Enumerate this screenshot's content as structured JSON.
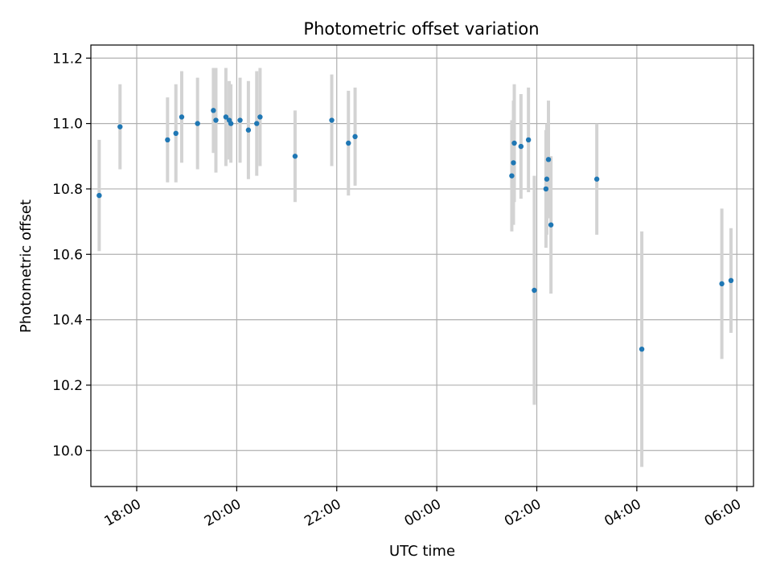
{
  "chart_data": {
    "type": "scatter",
    "title": "Photometric offset variation",
    "xlabel": "UTC time",
    "ylabel": "Photometric offset",
    "grid": true,
    "xaxis": {
      "kind": "time",
      "range": [
        "17:05",
        "06:20"
      ],
      "ticks": [
        "18:00",
        "20:00",
        "22:00",
        "00:00",
        "02:00",
        "04:00",
        "06:00"
      ]
    },
    "yaxis": {
      "range": [
        9.89,
        11.24
      ],
      "ticks": [
        "10.0",
        "10.2",
        "10.4",
        "10.6",
        "10.8",
        "11.0",
        "11.2"
      ]
    },
    "colors": {
      "marker": "#1f77b4",
      "errorbar": "#d3d3d3",
      "grid": "#b0b0b0"
    },
    "points": [
      {
        "t": "17:15",
        "y": 10.78,
        "err": 0.17
      },
      {
        "t": "17:40",
        "y": 10.99,
        "err": 0.13
      },
      {
        "t": "18:37",
        "y": 10.95,
        "err": 0.13
      },
      {
        "t": "18:47",
        "y": 10.97,
        "err": 0.15
      },
      {
        "t": "18:54",
        "y": 11.02,
        "err": 0.14
      },
      {
        "t": "19:13",
        "y": 11.0,
        "err": 0.14
      },
      {
        "t": "19:32",
        "y": 11.04,
        "err": 0.13
      },
      {
        "t": "19:35",
        "y": 11.01,
        "err": 0.16
      },
      {
        "t": "19:47",
        "y": 11.02,
        "err": 0.15
      },
      {
        "t": "19:51",
        "y": 11.01,
        "err": 0.12
      },
      {
        "t": "19:53",
        "y": 11.0,
        "err": 0.12
      },
      {
        "t": "20:04",
        "y": 11.01,
        "err": 0.13
      },
      {
        "t": "20:14",
        "y": 10.98,
        "err": 0.15
      },
      {
        "t": "20:24",
        "y": 11.0,
        "err": 0.16
      },
      {
        "t": "20:28",
        "y": 11.02,
        "err": 0.15
      },
      {
        "t": "21:10",
        "y": 10.9,
        "err": 0.14
      },
      {
        "t": "21:54",
        "y": 11.01,
        "err": 0.14
      },
      {
        "t": "22:14",
        "y": 10.94,
        "err": 0.16
      },
      {
        "t": "22:22",
        "y": 10.96,
        "err": 0.15
      },
      {
        "t": "01:30",
        "y": 10.84,
        "err": 0.17
      },
      {
        "t": "01:32",
        "y": 10.88,
        "err": 0.19
      },
      {
        "t": "01:33",
        "y": 10.94,
        "err": 0.18
      },
      {
        "t": "01:41",
        "y": 10.93,
        "err": 0.16
      },
      {
        "t": "01:50",
        "y": 10.95,
        "err": 0.16
      },
      {
        "t": "01:57",
        "y": 10.49,
        "err": 0.35
      },
      {
        "t": "02:11",
        "y": 10.8,
        "err": 0.18
      },
      {
        "t": "02:12",
        "y": 10.83,
        "err": 0.17
      },
      {
        "t": "02:14",
        "y": 10.89,
        "err": 0.18
      },
      {
        "t": "02:17",
        "y": 10.69,
        "err": 0.21
      },
      {
        "t": "03:12",
        "y": 10.83,
        "err": 0.17
      },
      {
        "t": "04:06",
        "y": 10.31,
        "err": 0.36
      },
      {
        "t": "05:42",
        "y": 10.51,
        "err": 0.23
      },
      {
        "t": "05:53",
        "y": 10.52,
        "err": 0.16
      }
    ]
  }
}
